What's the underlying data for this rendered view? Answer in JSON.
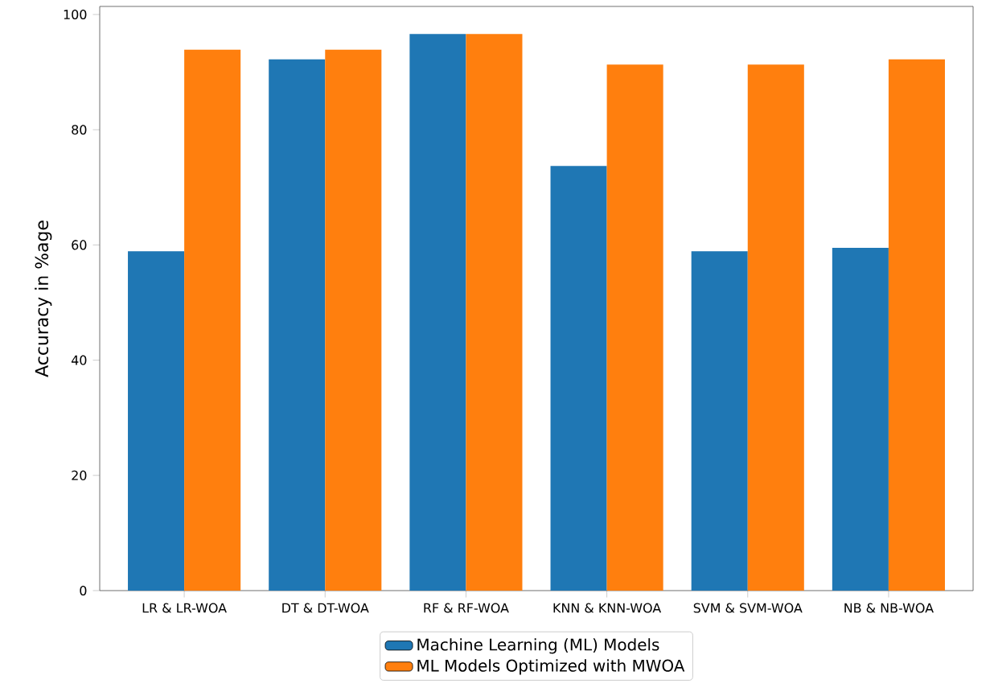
{
  "chart_data": {
    "type": "bar",
    "categories": [
      "LR & LR-WOA",
      "DT & DT-WOA",
      "RF & RF-WOA",
      "KNN & KNN-WOA",
      "SVM & SVM-WOA",
      "NB & NB-WOA"
    ],
    "series": [
      {
        "name": "Machine Learning (ML) Models",
        "color": "#1f77b4",
        "values": [
          58.9,
          92.2,
          96.6,
          73.7,
          58.9,
          59.5
        ]
      },
      {
        "name": "ML Models Optimized with MWOA",
        "color": "#ff7f0e",
        "values": [
          93.9,
          93.9,
          96.6,
          91.3,
          91.3,
          92.2
        ]
      }
    ],
    "ylabel": "Accuracy in %age",
    "ylim": [
      0,
      101.4
    ],
    "yticks": [
      0,
      20,
      40,
      60,
      80,
      100
    ],
    "grid": false,
    "legend": "bottom"
  }
}
